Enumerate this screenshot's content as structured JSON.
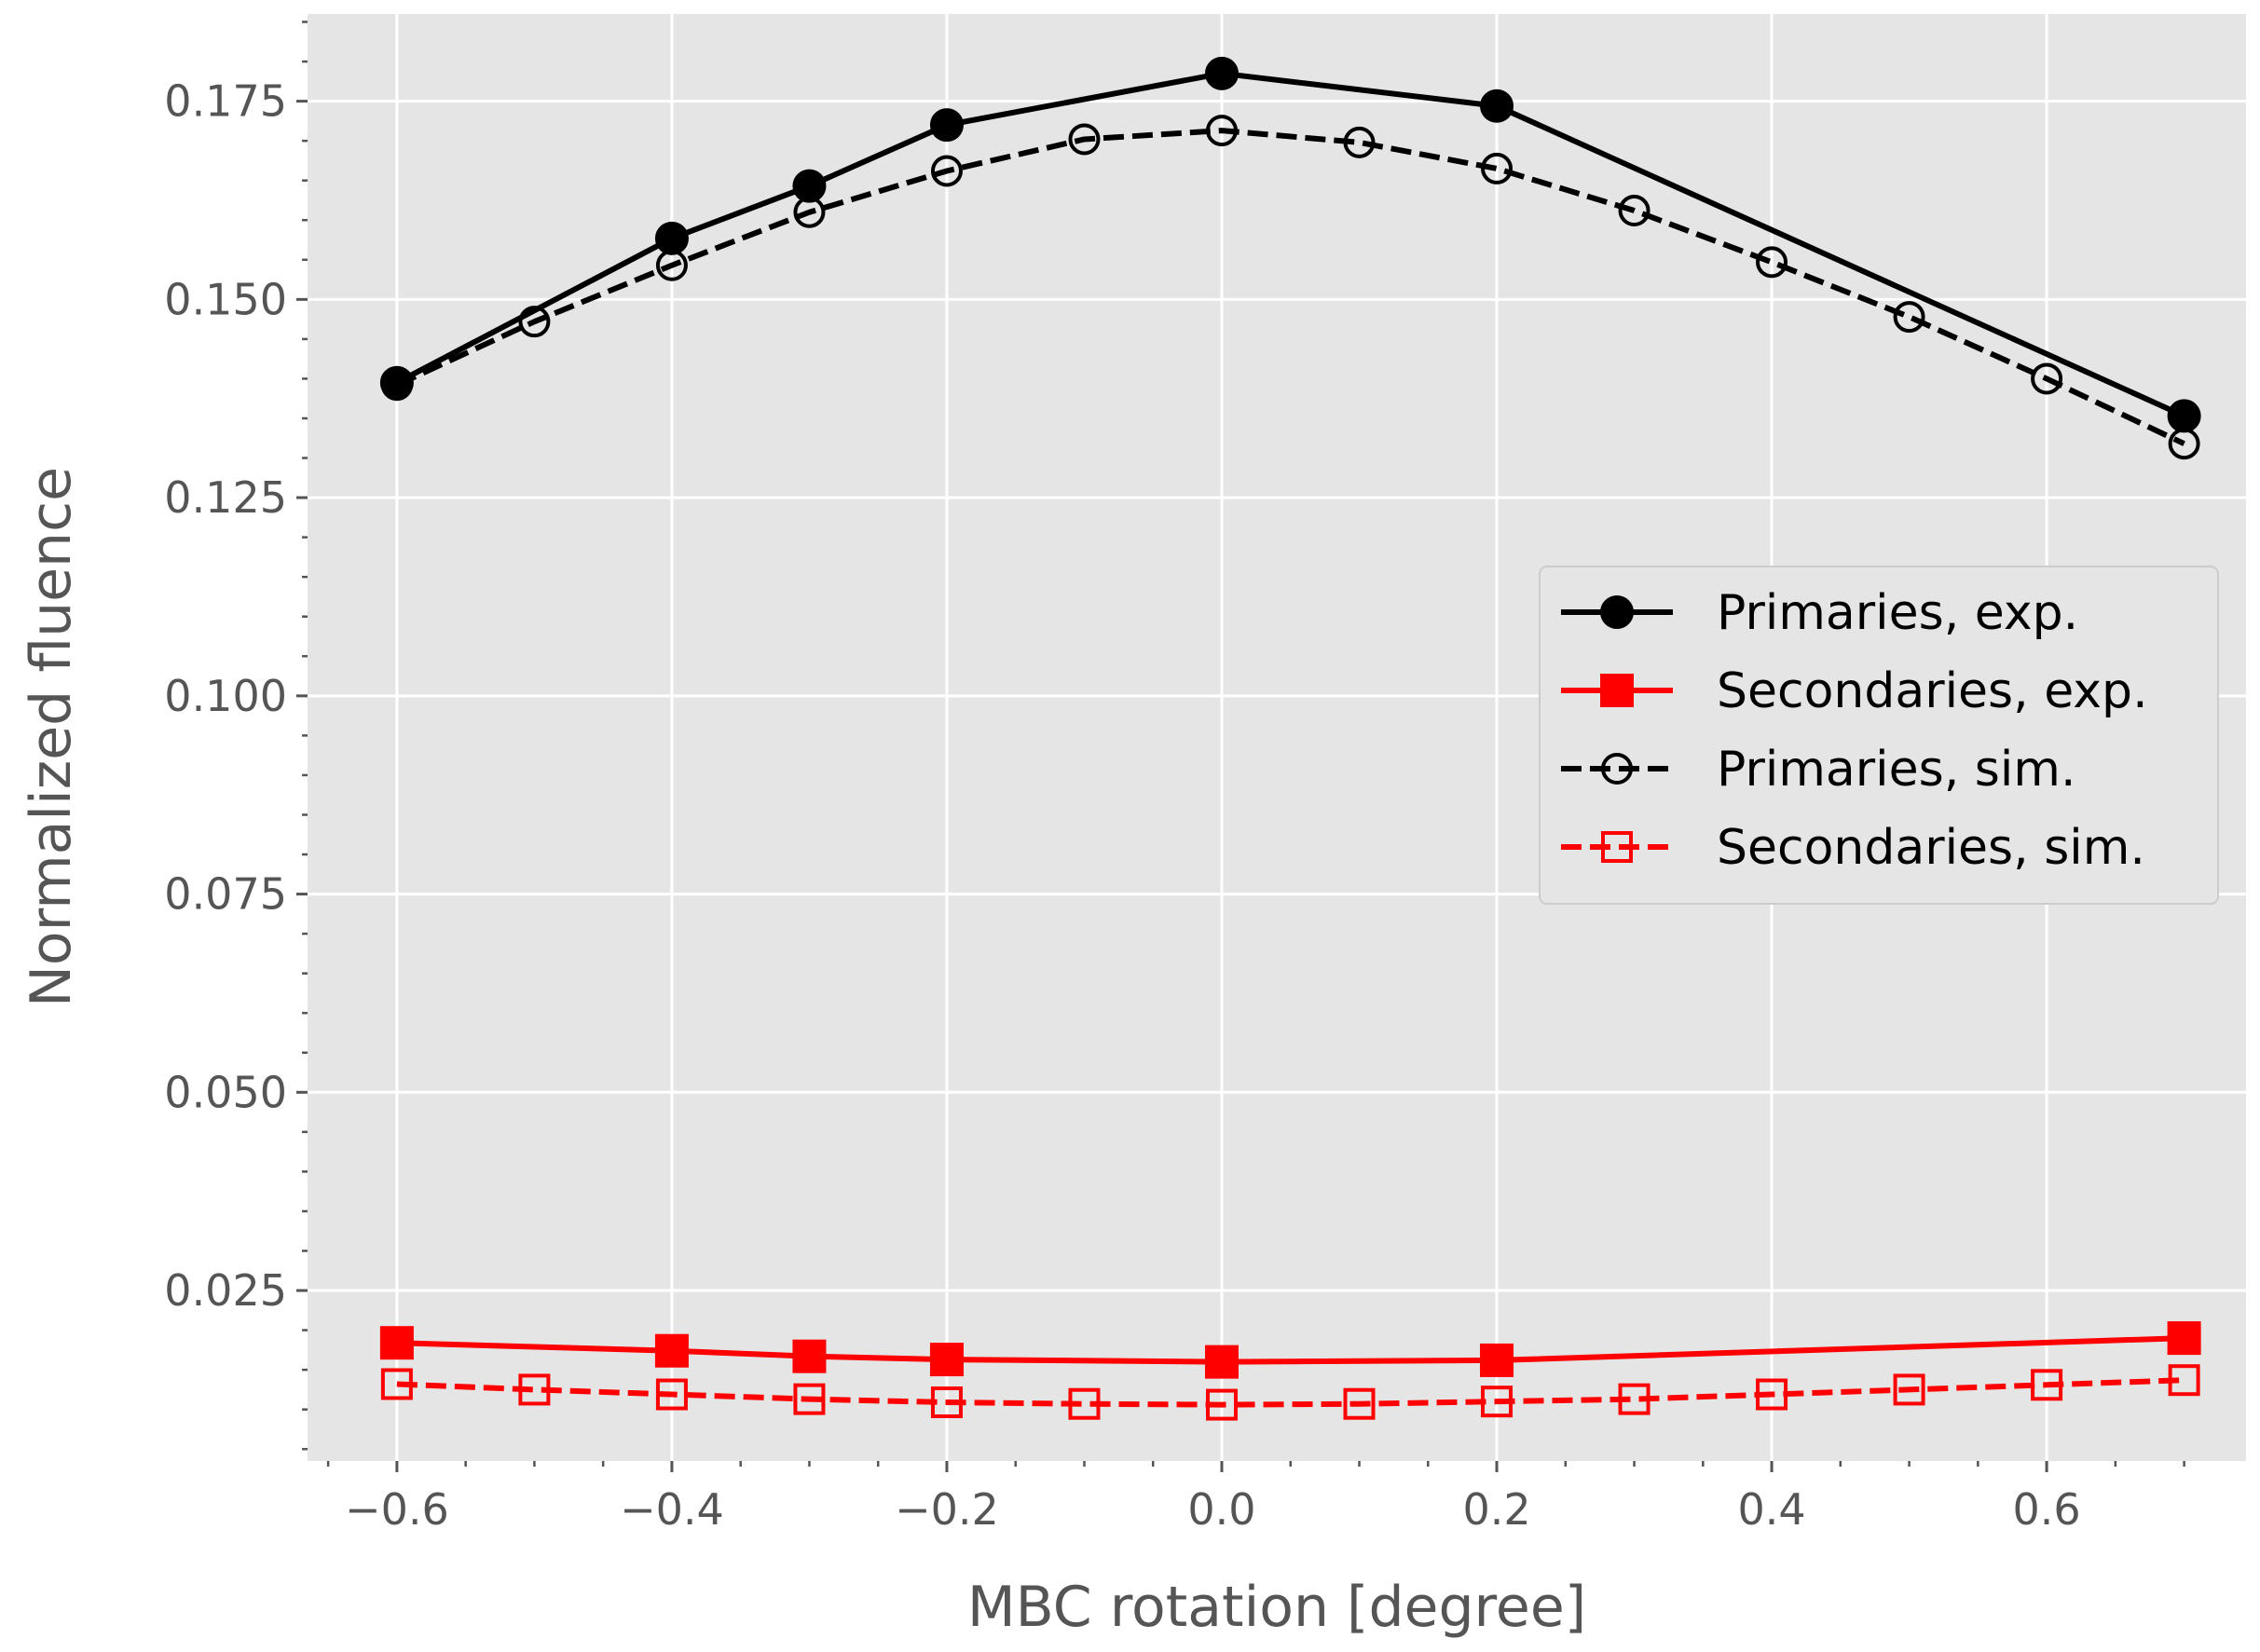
{
  "chart_data": {
    "type": "line",
    "title": "",
    "xlabel": "MBC rotation [degree]",
    "ylabel": "Normalized fluence",
    "xlim": [
      -0.665,
      0.745
    ],
    "ylim": [
      0.0035,
      0.186
    ],
    "xticks": [
      -0.6,
      -0.4,
      -0.2,
      0.0,
      0.2,
      0.4,
      0.6
    ],
    "xtick_labels": [
      "−0.6",
      "−0.4",
      "−0.2",
      "0.0",
      "0.2",
      "0.4",
      "0.6"
    ],
    "yticks": [
      0.025,
      0.05,
      0.075,
      0.1,
      0.125,
      0.15,
      0.175
    ],
    "ytick_labels": [
      "0.025",
      "0.050",
      "0.075",
      "0.100",
      "0.125",
      "0.150",
      "0.175"
    ],
    "x_minor_step": 0.05,
    "y_minor_step": 0.005,
    "grid": true,
    "legend_position": "center-right",
    "colors": {
      "background": "#e5e5e5",
      "grid": "#ffffff",
      "primaries": "#000000",
      "secondaries": "#ff0000"
    },
    "series": [
      {
        "name": "Primaries, exp.",
        "color": "#000000",
        "dashed": false,
        "marker": "circle",
        "filled": true,
        "x": [
          -0.6,
          -0.4,
          -0.3,
          -0.2,
          0.0,
          0.2,
          0.7
        ],
        "y": [
          0.1395,
          0.1577,
          0.1643,
          0.172,
          0.1785,
          0.1744,
          0.1353
        ]
      },
      {
        "name": "Secondaries, exp.",
        "color": "#ff0000",
        "dashed": false,
        "marker": "square",
        "filled": true,
        "x": [
          -0.6,
          -0.4,
          -0.3,
          -0.2,
          0.0,
          0.2,
          0.7
        ],
        "y": [
          0.0184,
          0.0174,
          0.0167,
          0.0163,
          0.016,
          0.0162,
          0.019
        ]
      },
      {
        "name": "Primaries, sim.",
        "color": "#000000",
        "dashed": true,
        "marker": "circle",
        "filled": false,
        "x": [
          -0.6,
          -0.5,
          -0.4,
          -0.3,
          -0.2,
          -0.1,
          0.0,
          0.1,
          0.2,
          0.3,
          0.4,
          0.5,
          0.6,
          0.7
        ],
        "y": [
          0.1392,
          0.1472,
          0.1543,
          0.161,
          0.1662,
          0.1702,
          0.1713,
          0.1698,
          0.1665,
          0.1612,
          0.1547,
          0.1478,
          0.14,
          0.1318
        ]
      },
      {
        "name": "Secondaries, sim.",
        "color": "#ff0000",
        "dashed": true,
        "marker": "square",
        "filled": false,
        "x": [
          -0.6,
          -0.5,
          -0.4,
          -0.3,
          -0.2,
          -0.1,
          0.0,
          0.1,
          0.2,
          0.3,
          0.4,
          0.5,
          0.6,
          0.7
        ],
        "y": [
          0.0132,
          0.0125,
          0.0119,
          0.0113,
          0.0109,
          0.0107,
          0.0106,
          0.0107,
          0.011,
          0.0113,
          0.0119,
          0.0125,
          0.0131,
          0.0137
        ]
      }
    ]
  }
}
